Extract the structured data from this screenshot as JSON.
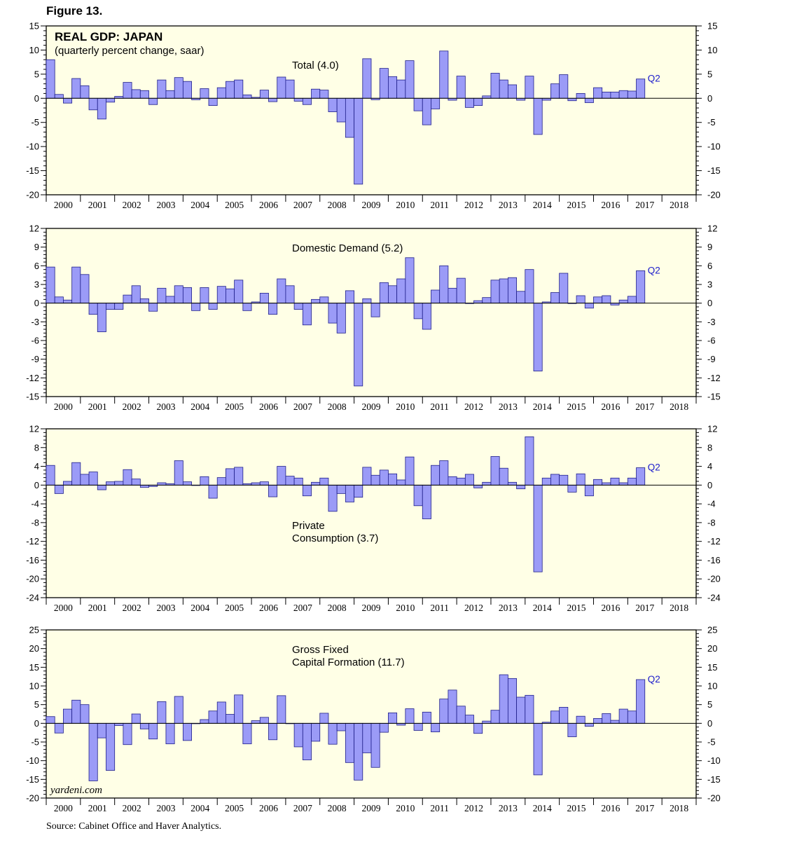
{
  "figure_label": "Figure 13.",
  "title": "REAL GDP: JAPAN",
  "subtitle": "(quarterly percent change, saar)",
  "source": "Source: Cabinet Office and Haver Analytics.",
  "watermark": "yardeni.com",
  "colors": {
    "bar_fill": "#9b9bf7",
    "bar_stroke": "#1f1f8a",
    "plot_bg": "#ffffe6",
    "q_label": "#1a1acc"
  },
  "chart_data": [
    {
      "type": "bar",
      "series_label": [
        "Total (4.0)"
      ],
      "x_start": "2000 Q1",
      "x_labels": [
        "2000",
        "2001",
        "2002",
        "2003",
        "2004",
        "2005",
        "2006",
        "2007",
        "2008",
        "2009",
        "2010",
        "2011",
        "2012",
        "2013",
        "2014",
        "2015",
        "2016",
        "2017",
        "2018"
      ],
      "ylim": [
        -20,
        15
      ],
      "yticks": [
        -20,
        -15,
        -10,
        -5,
        0,
        5,
        10,
        15
      ],
      "last_point_label": "Q2",
      "values": [
        8.0,
        0.8,
        -1.0,
        4.1,
        2.6,
        -2.4,
        -4.3,
        -0.8,
        0.4,
        3.3,
        1.8,
        1.6,
        -1.3,
        3.8,
        1.6,
        4.3,
        3.5,
        -0.3,
        2.0,
        -1.5,
        2.2,
        3.5,
        3.8,
        0.7,
        0.2,
        1.7,
        -0.7,
        4.4,
        3.8,
        -0.6,
        -1.3,
        1.9,
        1.7,
        -2.8,
        -4.9,
        -8.1,
        -17.8,
        8.2,
        -0.3,
        6.2,
        4.5,
        3.8,
        7.8,
        -2.6,
        -5.5,
        -2.2,
        9.8,
        -0.4,
        4.6,
        -1.9,
        -1.5,
        0.5,
        5.2,
        3.8,
        2.8,
        -0.4,
        4.6,
        -7.5,
        -0.4,
        3.0,
        4.9,
        -0.5,
        1.0,
        -0.9,
        2.2,
        1.3,
        1.3,
        1.6,
        1.5,
        4.0
      ]
    },
    {
      "type": "bar",
      "series_label": [
        "Domestic Demand (5.2)"
      ],
      "x_start": "2000 Q1",
      "x_labels": [
        "2000",
        "2001",
        "2002",
        "2003",
        "2004",
        "2005",
        "2006",
        "2007",
        "2008",
        "2009",
        "2010",
        "2011",
        "2012",
        "2013",
        "2014",
        "2015",
        "2016",
        "2017",
        "2018"
      ],
      "ylim": [
        -15,
        12
      ],
      "yticks": [
        -15,
        -12,
        -9,
        -6,
        -3,
        0,
        3,
        6,
        9,
        12
      ],
      "last_point_label": "Q2",
      "values": [
        5.8,
        1.0,
        0.5,
        5.8,
        4.6,
        -1.8,
        -4.6,
        -1.0,
        -1.0,
        1.3,
        2.8,
        0.7,
        -1.3,
        2.4,
        1.1,
        2.8,
        2.5,
        -1.2,
        2.5,
        -1.0,
        2.7,
        2.3,
        3.7,
        -1.2,
        0.2,
        1.6,
        -1.8,
        3.9,
        2.8,
        -1.0,
        -3.5,
        0.6,
        1.0,
        -3.2,
        -4.8,
        2.0,
        -13.3,
        0.7,
        -2.2,
        3.3,
        2.8,
        3.9,
        7.3,
        -2.5,
        -4.2,
        2.1,
        6.0,
        2.4,
        4.0,
        0.0,
        0.4,
        0.9,
        3.7,
        3.9,
        4.1,
        1.9,
        5.4,
        -10.9,
        0.2,
        1.7,
        4.8,
        0.0,
        1.2,
        -0.8,
        1.0,
        1.2,
        -0.3,
        0.5,
        1.1,
        5.2
      ]
    },
    {
      "type": "bar",
      "series_label": [
        "Private",
        "Consumption (3.7)"
      ],
      "x_start": "2000 Q1",
      "x_labels": [
        "2000",
        "2001",
        "2002",
        "2003",
        "2004",
        "2005",
        "2006",
        "2007",
        "2008",
        "2009",
        "2010",
        "2011",
        "2012",
        "2013",
        "2014",
        "2015",
        "2016",
        "2017",
        "2018"
      ],
      "ylim": [
        -24,
        12
      ],
      "yticks": [
        -24,
        -20,
        -16,
        -12,
        -8,
        -4,
        0,
        4,
        8,
        12
      ],
      "last_point_label": "Q2",
      "values": [
        4.2,
        -1.8,
        0.8,
        4.8,
        2.3,
        2.8,
        -1.0,
        0.7,
        0.8,
        3.3,
        1.3,
        -0.5,
        -0.3,
        0.5,
        0.3,
        5.2,
        0.7,
        0.0,
        1.8,
        -2.8,
        1.6,
        3.5,
        3.8,
        0.3,
        0.5,
        0.7,
        -2.5,
        4.0,
        1.9,
        1.5,
        -2.3,
        0.6,
        1.5,
        -5.6,
        -1.8,
        -3.6,
        -2.6,
        3.8,
        2.1,
        3.2,
        2.4,
        1.1,
        6.0,
        -4.4,
        -7.2,
        4.2,
        5.2,
        1.8,
        1.5,
        2.3,
        -0.6,
        0.6,
        6.1,
        3.6,
        0.6,
        -0.8,
        10.3,
        -18.5,
        1.5,
        2.3,
        2.1,
        -1.5,
        2.4,
        -2.3,
        1.2,
        0.5,
        1.5,
        0.5,
        1.5,
        3.7
      ]
    },
    {
      "type": "bar",
      "series_label": [
        "Gross Fixed",
        "Capital Formation (11.7)"
      ],
      "x_start": "2000 Q1",
      "x_labels": [
        "2000",
        "2001",
        "2002",
        "2003",
        "2004",
        "2005",
        "2006",
        "2007",
        "2008",
        "2009",
        "2010",
        "2011",
        "2012",
        "2013",
        "2014",
        "2015",
        "2016",
        "2017",
        "2018"
      ],
      "ylim": [
        -20,
        25
      ],
      "yticks": [
        -20,
        -15,
        -10,
        -5,
        0,
        5,
        10,
        15,
        20,
        25
      ],
      "last_point_label": "Q2",
      "values": [
        1.8,
        -2.6,
        3.8,
        6.2,
        5.0,
        -15.4,
        -3.9,
        -12.6,
        -0.6,
        -5.7,
        2.5,
        -1.5,
        -4.2,
        5.8,
        -5.5,
        7.2,
        -4.6,
        0.0,
        1.0,
        3.3,
        5.7,
        2.4,
        7.6,
        -5.5,
        0.7,
        1.6,
        -4.4,
        7.4,
        0.0,
        -6.3,
        -9.8,
        -4.8,
        2.7,
        -5.6,
        -2.0,
        -10.5,
        -15.2,
        -7.9,
        -11.8,
        -2.4,
        2.8,
        -0.5,
        3.9,
        -1.9,
        3.0,
        -2.3,
        6.5,
        8.9,
        4.6,
        2.2,
        -2.7,
        0.6,
        3.5,
        13.0,
        12.0,
        7.0,
        7.5,
        -13.8,
        0.3,
        3.3,
        4.3,
        -3.6,
        1.9,
        -0.8,
        1.3,
        2.6,
        0.8,
        3.8,
        3.3,
        11.7
      ]
    }
  ]
}
